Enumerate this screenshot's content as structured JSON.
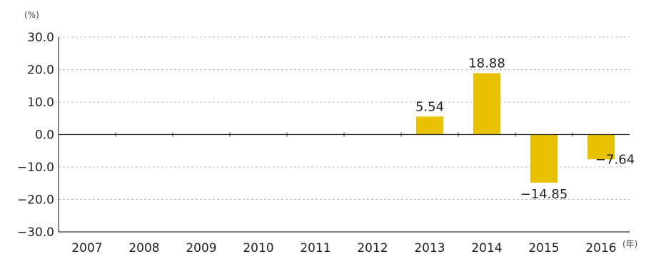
{
  "chart_data": {
    "type": "bar",
    "categories": [
      "2007",
      "2008",
      "2009",
      "2010",
      "2011",
      "2012",
      "2013",
      "2014",
      "2015",
      "2016"
    ],
    "values": [
      null,
      null,
      null,
      null,
      null,
      null,
      5.54,
      18.88,
      -14.85,
      -7.64
    ],
    "data_labels": [
      "",
      "",
      "",
      "",
      "",
      "",
      "5.54",
      "18.88",
      "−14.85",
      "−7.64"
    ],
    "y_ticks": [
      30,
      20,
      10,
      0,
      -10,
      -20,
      -30
    ],
    "y_tick_labels": [
      "30.0",
      "20.0",
      "10.0",
      "0.0",
      "−10.0",
      "−20.0",
      "−30.0"
    ],
    "ylim": [
      -30,
      30
    ],
    "y_unit": "(%)",
    "x_unit": "(年)",
    "grid": "horizontal dashed",
    "colors": {
      "bar": "#E8C100",
      "axis": "#333333",
      "grid": "#bbbbbb"
    }
  }
}
